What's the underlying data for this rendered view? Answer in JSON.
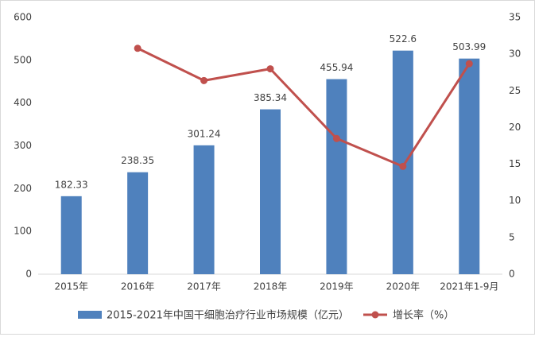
{
  "chart_data": {
    "type": "bar",
    "categories": [
      "2015年",
      "2016年",
      "2017年",
      "2018年",
      "2019年",
      "2020年",
      "2021年1-9月"
    ],
    "series": [
      {
        "name": "2015-2021年中国干细胞治疗行业市场规模（亿元）",
        "type": "bar",
        "axis": "left",
        "values": [
          182.33,
          238.35,
          301.24,
          385.34,
          455.94,
          522.6,
          503.99
        ],
        "data_labels": [
          "182.33",
          "238.35",
          "301.24",
          "385.34",
          "455.94",
          "522.6",
          "503.99"
        ],
        "color": "#4F81BD"
      },
      {
        "name": "增长率（%）",
        "type": "line",
        "axis": "right",
        "values": [
          null,
          30.8,
          26.4,
          28.0,
          18.5,
          14.7,
          28.7
        ],
        "color": "#C0504D"
      }
    ],
    "left_axis": {
      "ylim": [
        0,
        600
      ],
      "ticks": [
        0,
        100,
        200,
        300,
        400,
        500,
        600
      ]
    },
    "right_axis": {
      "ylim": [
        0,
        35
      ],
      "ticks": [
        0,
        5,
        10,
        15,
        20,
        25,
        30,
        35
      ]
    },
    "grid": false,
    "legend_position": "bottom"
  },
  "colors": {
    "bar": "#4F81BD",
    "line": "#C0504D",
    "axis": "#d9d9d9",
    "text": "#404040"
  }
}
